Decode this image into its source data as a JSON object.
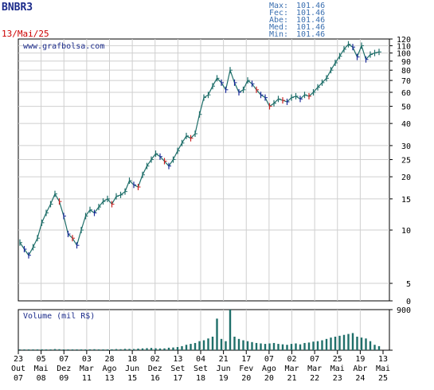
{
  "chart_data": {
    "type": "line",
    "ticker": "BNBR3",
    "date": "13/Mai/25",
    "watermark": "www.grafbolsa.com",
    "stats": [
      {
        "label": "Max:",
        "value": "101.46"
      },
      {
        "label": "Fec:",
        "value": "101.46"
      },
      {
        "label": "Abe:",
        "value": "101.46"
      },
      {
        "label": "Med:",
        "value": "101.46"
      },
      {
        "label": "Min:",
        "value": "101.46"
      }
    ],
    "price_axis": {
      "min": 0,
      "max": 120,
      "ticks": [
        0,
        5,
        10,
        15,
        20,
        25,
        30,
        40,
        50,
        60,
        70,
        80,
        90,
        100,
        110,
        120
      ],
      "scale": "log"
    },
    "volume_label": "Volume (mil R$)",
    "volume_axis": {
      "min": 0,
      "max": 900,
      "ticks": [
        0,
        900
      ]
    },
    "x_labels": [
      {
        "day": "23",
        "mon": "Out",
        "yr": "07"
      },
      {
        "day": "05",
        "mon": "Mai",
        "yr": "08"
      },
      {
        "day": "07",
        "mon": "Dez",
        "yr": "09"
      },
      {
        "day": "03",
        "mon": "Mar",
        "yr": "11"
      },
      {
        "day": "28",
        "mon": "Ago",
        "yr": "13"
      },
      {
        "day": "18",
        "mon": "Jun",
        "yr": "15"
      },
      {
        "day": "02",
        "mon": "Dez",
        "yr": "16"
      },
      {
        "day": "13",
        "mon": "Set",
        "yr": "17"
      },
      {
        "day": "04",
        "mon": "Set",
        "yr": "18"
      },
      {
        "day": "21",
        "mon": "Jun",
        "yr": "19"
      },
      {
        "day": "17",
        "mon": "Fev",
        "yr": "20"
      },
      {
        "day": "07",
        "mon": "Ago",
        "yr": "20"
      },
      {
        "day": "02",
        "mon": "Mar",
        "yr": "21"
      },
      {
        "day": "07",
        "mon": "Mar",
        "yr": "22"
      },
      {
        "day": "25",
        "mon": "Mai",
        "yr": "23"
      },
      {
        "day": "19",
        "mon": "Abr",
        "yr": "24"
      },
      {
        "day": "13",
        "mon": "Mai",
        "yr": "25"
      }
    ],
    "price_series": [
      8.5,
      7.8,
      7.2,
      8.0,
      9.0,
      11.0,
      12.5,
      14.0,
      16.0,
      14.5,
      12.0,
      9.5,
      9.0,
      8.2,
      10.0,
      12.0,
      13.0,
      12.5,
      13.5,
      14.5,
      15.0,
      14.0,
      15.5,
      15.8,
      16.5,
      19.0,
      18.0,
      17.5,
      20.5,
      23.0,
      25.0,
      27.0,
      26.0,
      24.5,
      23.0,
      25.0,
      28.0,
      31.0,
      34.0,
      33.0,
      35.0,
      45.0,
      56.0,
      58.0,
      65.0,
      72.0,
      68.0,
      62.0,
      80.0,
      68.0,
      60.0,
      62.0,
      70.0,
      67.0,
      62.0,
      58.0,
      56.0,
      50.0,
      52.0,
      55.0,
      54.0,
      53.0,
      56.0,
      57.0,
      55.0,
      58.0,
      57.0,
      60.0,
      64.0,
      68.0,
      72.0,
      80.0,
      88.0,
      96.0,
      105.0,
      112.0,
      108.0,
      95.0,
      110.0,
      92.0,
      98.0,
      100.0,
      101.46
    ],
    "volume_series": [
      5,
      8,
      6,
      10,
      12,
      20,
      15,
      18,
      25,
      22,
      14,
      10,
      9,
      12,
      16,
      18,
      20,
      22,
      18,
      16,
      15,
      20,
      25,
      22,
      30,
      28,
      26,
      35,
      40,
      45,
      50,
      42,
      38,
      40,
      55,
      60,
      70,
      90,
      120,
      140,
      160,
      200,
      220,
      260,
      300,
      700,
      250,
      200,
      900,
      300,
      250,
      220,
      200,
      180,
      160,
      150,
      140,
      150,
      160,
      140,
      130,
      120,
      140,
      150,
      130,
      160,
      170,
      190,
      200,
      220,
      250,
      280,
      300,
      320,
      340,
      360,
      380,
      300,
      280,
      260,
      200,
      120,
      90
    ]
  }
}
